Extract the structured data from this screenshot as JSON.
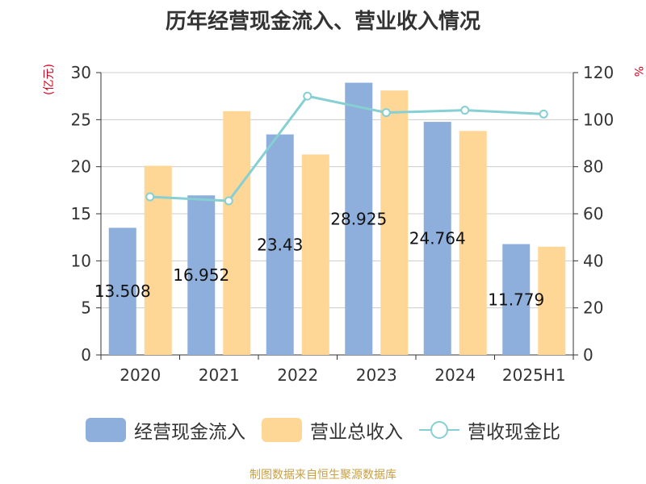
{
  "title": "历年经营现金流入、营业收入情况",
  "source": "制图数据来自恒生聚源数据库",
  "units": {
    "left": "(亿元)",
    "right": "%"
  },
  "colors": {
    "cash_inflow": "#8eaedb",
    "revenue": "#fed797",
    "ratio": "#86cfd3"
  },
  "chart_data": {
    "type": "bar",
    "title": "历年经营现金流入、营业收入情况",
    "categories": [
      "2020",
      "2021",
      "2022",
      "2023",
      "2024",
      "2025H1"
    ],
    "series": [
      {
        "name": "经营现金流入",
        "axis": "left",
        "type": "bar",
        "values": [
          13.508,
          16.952,
          23.43,
          28.925,
          24.764,
          11.779
        ],
        "labels": [
          "13.508",
          "16.952",
          "23.43",
          "28.925",
          "24.764",
          "11.779"
        ]
      },
      {
        "name": "营业总收入",
        "axis": "left",
        "type": "bar",
        "values": [
          20.1,
          25.9,
          21.3,
          28.1,
          23.8,
          11.5
        ]
      },
      {
        "name": "营收现金比",
        "axis": "right",
        "type": "line",
        "values": [
          67.2,
          65.5,
          110.0,
          103.0,
          104.0,
          102.4
        ]
      }
    ],
    "y_left": {
      "min": 0,
      "max": 30,
      "ticks": [
        "0",
        "5",
        "10",
        "15",
        "20",
        "25",
        "30"
      ]
    },
    "y_right": {
      "min": 0,
      "max": 120,
      "ticks": [
        "0",
        "20",
        "40",
        "60",
        "80",
        "100",
        "120"
      ]
    },
    "grid": true,
    "legend_position": "bottom"
  },
  "legend": [
    {
      "label": "经营现金流入"
    },
    {
      "label": "营业总收入"
    },
    {
      "label": "营收现金比"
    }
  ]
}
